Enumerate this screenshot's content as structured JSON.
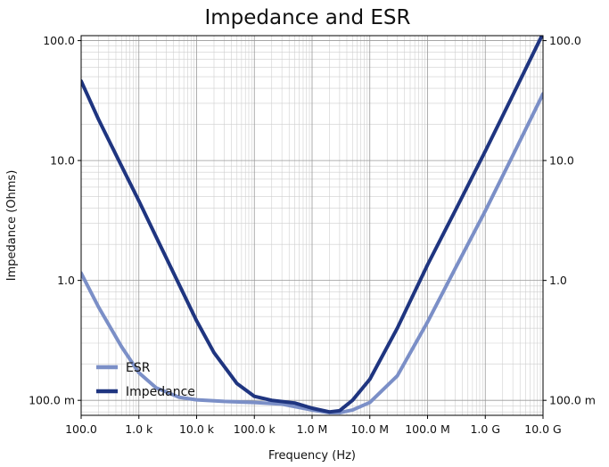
{
  "chart_data": {
    "type": "line",
    "title": "Impedance and ESR",
    "xlabel": "Frequency (Hz)",
    "ylabel": "Impedance (Ohms)",
    "xscale": "log",
    "yscale": "log",
    "xlim": [
      100,
      10000000000
    ],
    "ylim": [
      0.075,
      110
    ],
    "grid": true,
    "legend_position": "lower-left",
    "x_ticks": [
      {
        "value": 100,
        "label": "100.0"
      },
      {
        "value": 1000,
        "label": "1.0 k"
      },
      {
        "value": 10000,
        "label": "10.0 k"
      },
      {
        "value": 100000,
        "label": "100.0 k"
      },
      {
        "value": 1000000,
        "label": "1.0 M"
      },
      {
        "value": 10000000,
        "label": "10.0 M"
      },
      {
        "value": 100000000,
        "label": "100.0 M"
      },
      {
        "value": 1000000000,
        "label": "1.0 G"
      },
      {
        "value": 10000000000,
        "label": "10.0 G"
      }
    ],
    "y_ticks": [
      {
        "value": 0.1,
        "label": "100.0 m"
      },
      {
        "value": 1,
        "label": "1.0"
      },
      {
        "value": 10,
        "label": "10.0"
      },
      {
        "value": 100,
        "label": "100.0"
      }
    ],
    "series": [
      {
        "name": "ESR",
        "color": "#7b8fc7",
        "x": [
          100,
          200,
          500,
          1000,
          2000,
          5000,
          10000,
          30000,
          100000,
          300000,
          1000000,
          2000000,
          3000000,
          5000000,
          10000000,
          30000000,
          100000000,
          300000000,
          1000000000,
          3000000000,
          10000000000
        ],
        "y": [
          1.15,
          0.6,
          0.28,
          0.17,
          0.127,
          0.106,
          0.101,
          0.098,
          0.096,
          0.093,
          0.083,
          0.079,
          0.079,
          0.083,
          0.096,
          0.16,
          0.45,
          1.25,
          3.8,
          11,
          36
        ]
      },
      {
        "name": "Impedance",
        "color": "#1f3580",
        "x": [
          100,
          200,
          500,
          1000,
          2000,
          5000,
          10000,
          20000,
          50000,
          100000,
          200000,
          500000,
          1000000,
          2000000,
          3000000,
          5000000,
          10000000,
          30000000,
          100000000,
          300000000,
          1000000000,
          3000000000,
          10000000000
        ],
        "y": [
          46,
          22,
          9,
          4.6,
          2.3,
          0.92,
          0.46,
          0.25,
          0.138,
          0.108,
          0.1,
          0.095,
          0.086,
          0.08,
          0.082,
          0.1,
          0.15,
          0.4,
          1.35,
          3.8,
          12,
          35,
          115
        ]
      }
    ]
  }
}
